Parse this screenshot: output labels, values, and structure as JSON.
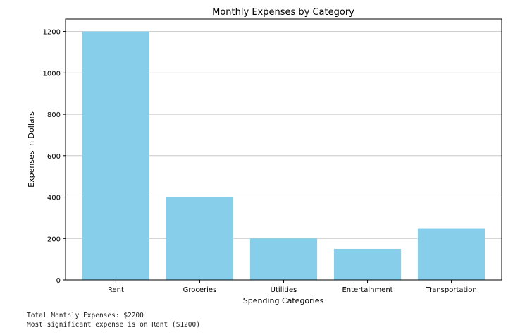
{
  "chart_data": {
    "type": "bar",
    "title": "Monthly Expenses by Category",
    "xlabel": "Spending Categories",
    "ylabel": "Expenses in Dollars",
    "categories": [
      "Rent",
      "Groceries",
      "Utilities",
      "Entertainment",
      "Transportation"
    ],
    "values": [
      1200,
      400,
      200,
      150,
      250
    ],
    "ylim": [
      0,
      1260
    ],
    "yticks": [
      0,
      200,
      400,
      600,
      800,
      1000,
      1200
    ],
    "grid": "y",
    "bar_color": "#87ceeb"
  },
  "notes": {
    "total_line": "Total Monthly Expenses: $2200",
    "max_line": "Most significant expense is on Rent ($1200)"
  }
}
